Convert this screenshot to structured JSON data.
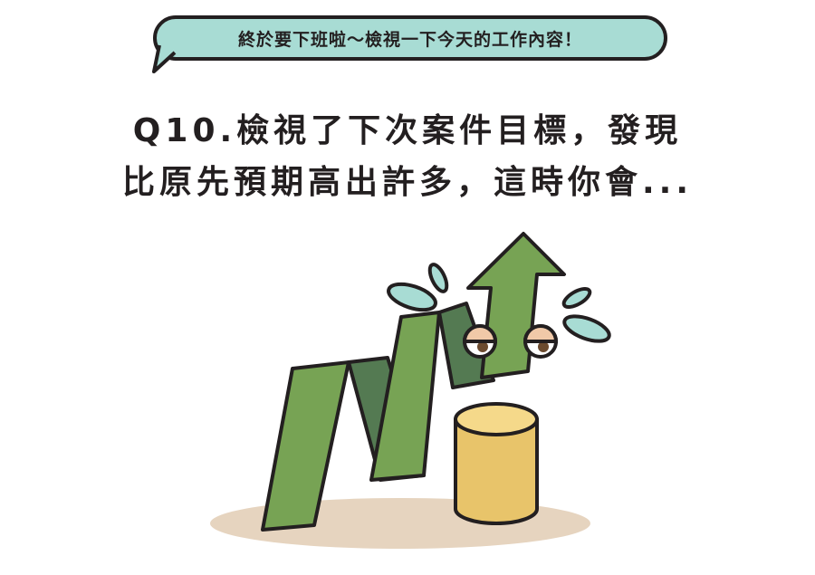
{
  "bubble": {
    "text": "終於要下班啦～檢視一下今天的工作內容！"
  },
  "question": {
    "line1": "Q10.檢視了下次案件目標，發現",
    "line2": "比原先預期高出許多，這時你會..."
  },
  "illustration": {
    "subject": "growth-arrow-character-with-coin",
    "colors": {
      "arrow_light": "#77a354",
      "arrow_dark": "#547a52",
      "coin_side": "#e8c46a",
      "coin_top": "#f5d98a",
      "shadow": "#e6d4bf",
      "sweat": "#a8dcd4",
      "outline": "#231f20"
    }
  }
}
